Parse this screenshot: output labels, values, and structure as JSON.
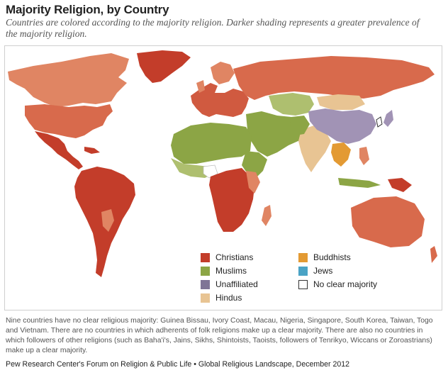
{
  "header": {
    "title": "Majority Religion, by Country",
    "subtitle": "Countries are colored according to the majority religion. Darker shading represents a greater prevalence of the majority religion."
  },
  "colors": {
    "christians": "#c33d2a",
    "christians_light": "#e07d5e",
    "muslims": "#8ca545",
    "muslims_light": "#aebf6f",
    "unaffiliated": "#a193b5",
    "hindus": "#e8c493",
    "buddhists": "#e39a33",
    "jews": "#4aa3c5",
    "no_majority": "#ffffff"
  },
  "legend": [
    {
      "label": "Christians",
      "color": "#c33d2a",
      "icon": "square-swatch"
    },
    {
      "label": "Muslims",
      "color": "#8ca545",
      "icon": "square-swatch"
    },
    {
      "label": "Unaffiliated",
      "color": "#7f7596",
      "icon": "square-swatch"
    },
    {
      "label": "Hindus",
      "color": "#e8c493",
      "icon": "square-swatch"
    },
    {
      "label": "Buddhists",
      "color": "#e39a33",
      "icon": "square-swatch"
    },
    {
      "label": "Jews",
      "color": "#4aa3c5",
      "icon": "square-swatch"
    },
    {
      "label": "No clear majority",
      "color": "#ffffff",
      "icon": "outlined-square-swatch"
    }
  ],
  "footnote": "Nine countries have no clear religious majority: Guinea Bissau, Ivory Coast, Macau, Nigeria, Singapore, South Korea, Taiwan, Togo and Vietnam. There are no countries in which adherents of folk religions make up a clear majority. There are also no countries in which followers of other religions (such as Baha'i's, Jains, Sikhs, Shintoists, Taoists, followers of Tenrikyo, Wiccans or Zoroastrians) make up a clear majority.",
  "credit": "Pew Research Center's Forum on Religion & Public Life • Global Religious Landscape, December 2012"
}
